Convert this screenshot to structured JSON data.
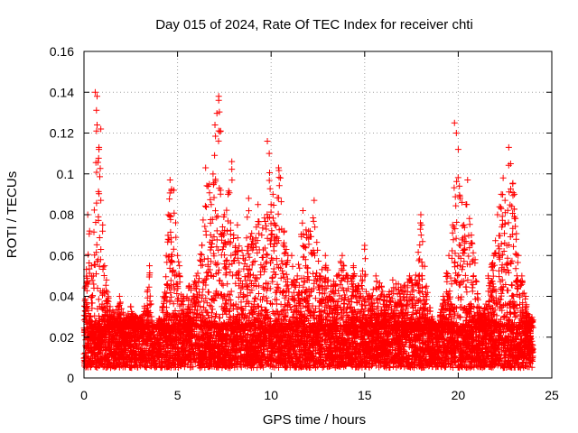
{
  "chart_data": {
    "type": "scatter",
    "title": "Day 015 of 2024, Rate Of TEC Index for receiver chti",
    "xlabel": "GPS time / hours",
    "ylabel": "ROTI / TECUs",
    "xlim": [
      0,
      25
    ],
    "ylim": [
      0,
      0.16
    ],
    "xticks": [
      0,
      5,
      10,
      15,
      20,
      25
    ],
    "xtick_labels": [
      "0",
      "5",
      "10",
      "15",
      "20",
      "25"
    ],
    "yticks": [
      0,
      0.02,
      0.04,
      0.06,
      0.08,
      0.1,
      0.12,
      0.14,
      0.16
    ],
    "ytick_labels": [
      "0",
      "0.02",
      "0.04",
      "0.06",
      "0.08",
      "0.1",
      "0.12",
      "0.14",
      "0.16"
    ],
    "grid": true,
    "marker": "+",
    "marker_color": "#ff0000",
    "x_data_range": [
      0,
      24
    ],
    "baseline_band": [
      0.005,
      0.025
    ],
    "series": [
      {
        "name": "ROTI",
        "x": [
          0.1,
          0.2,
          0.3,
          0.3,
          0.4,
          0.5,
          0.6,
          0.7,
          0.7,
          0.8,
          0.8,
          0.9,
          0.9,
          1.0,
          1.1,
          1.2,
          1.4,
          1.6,
          1.9,
          2.2,
          2.5,
          2.8,
          3.1,
          3.4,
          3.5,
          3.7,
          4.2,
          4.4,
          4.5,
          4.6,
          4.8,
          4.9,
          5.0,
          5.1,
          5.3,
          5.6,
          6.0,
          6.3,
          6.5,
          6.7,
          6.8,
          7.0,
          7.2,
          7.2,
          7.3,
          7.3,
          7.5,
          7.7,
          7.9,
          8.0,
          8.2,
          8.5,
          8.8,
          9.0,
          9.3,
          9.5,
          9.8,
          9.9,
          10.0,
          10.1,
          10.2,
          10.4,
          10.5,
          10.7,
          10.9,
          11.1,
          11.4,
          11.7,
          12.0,
          12.3,
          12.6,
          12.9,
          13.2,
          13.5,
          13.8,
          14.1,
          14.4,
          14.7,
          15.0,
          15.3,
          15.6,
          15.9,
          16.2,
          16.5,
          16.8,
          17.1,
          17.4,
          17.7,
          18.0,
          18.3,
          18.6,
          18.9,
          19.2,
          19.5,
          19.7,
          19.8,
          19.9,
          20.0,
          20.1,
          20.2,
          20.3,
          20.5,
          20.7,
          20.9,
          21.1,
          21.3,
          21.6,
          21.9,
          22.1,
          22.3,
          22.4,
          22.5,
          22.6,
          22.7,
          22.8,
          23.0,
          23.2,
          23.4,
          23.6,
          23.8
        ],
        "y": [
          0.045,
          0.08,
          0.072,
          0.03,
          0.055,
          0.05,
          0.14,
          0.138,
          0.124,
          0.113,
          0.112,
          0.122,
          0.087,
          0.075,
          0.055,
          0.048,
          0.035,
          0.032,
          0.04,
          0.028,
          0.035,
          0.03,
          0.03,
          0.043,
          0.055,
          0.02,
          0.035,
          0.06,
          0.08,
          0.097,
          0.092,
          0.076,
          0.06,
          0.055,
          0.04,
          0.045,
          0.05,
          0.065,
          0.103,
          0.095,
          0.085,
          0.124,
          0.138,
          0.136,
          0.121,
          0.092,
          0.08,
          0.09,
          0.106,
          0.07,
          0.075,
          0.06,
          0.088,
          0.068,
          0.085,
          0.07,
          0.116,
          0.11,
          0.085,
          0.09,
          0.075,
          0.103,
          0.098,
          0.072,
          0.06,
          0.06,
          0.05,
          0.082,
          0.072,
          0.087,
          0.05,
          0.06,
          0.045,
          0.05,
          0.06,
          0.05,
          0.055,
          0.045,
          0.065,
          0.04,
          0.05,
          0.045,
          0.04,
          0.048,
          0.046,
          0.045,
          0.05,
          0.048,
          0.08,
          0.045,
          0.03,
          0.025,
          0.04,
          0.06,
          0.075,
          0.125,
          0.12,
          0.112,
          0.088,
          0.086,
          0.075,
          0.097,
          0.07,
          0.058,
          0.035,
          0.03,
          0.05,
          0.06,
          0.08,
          0.09,
          0.098,
          0.087,
          0.065,
          0.113,
          0.105,
          0.09,
          0.06,
          0.05,
          0.04,
          0.03
        ]
      }
    ]
  }
}
